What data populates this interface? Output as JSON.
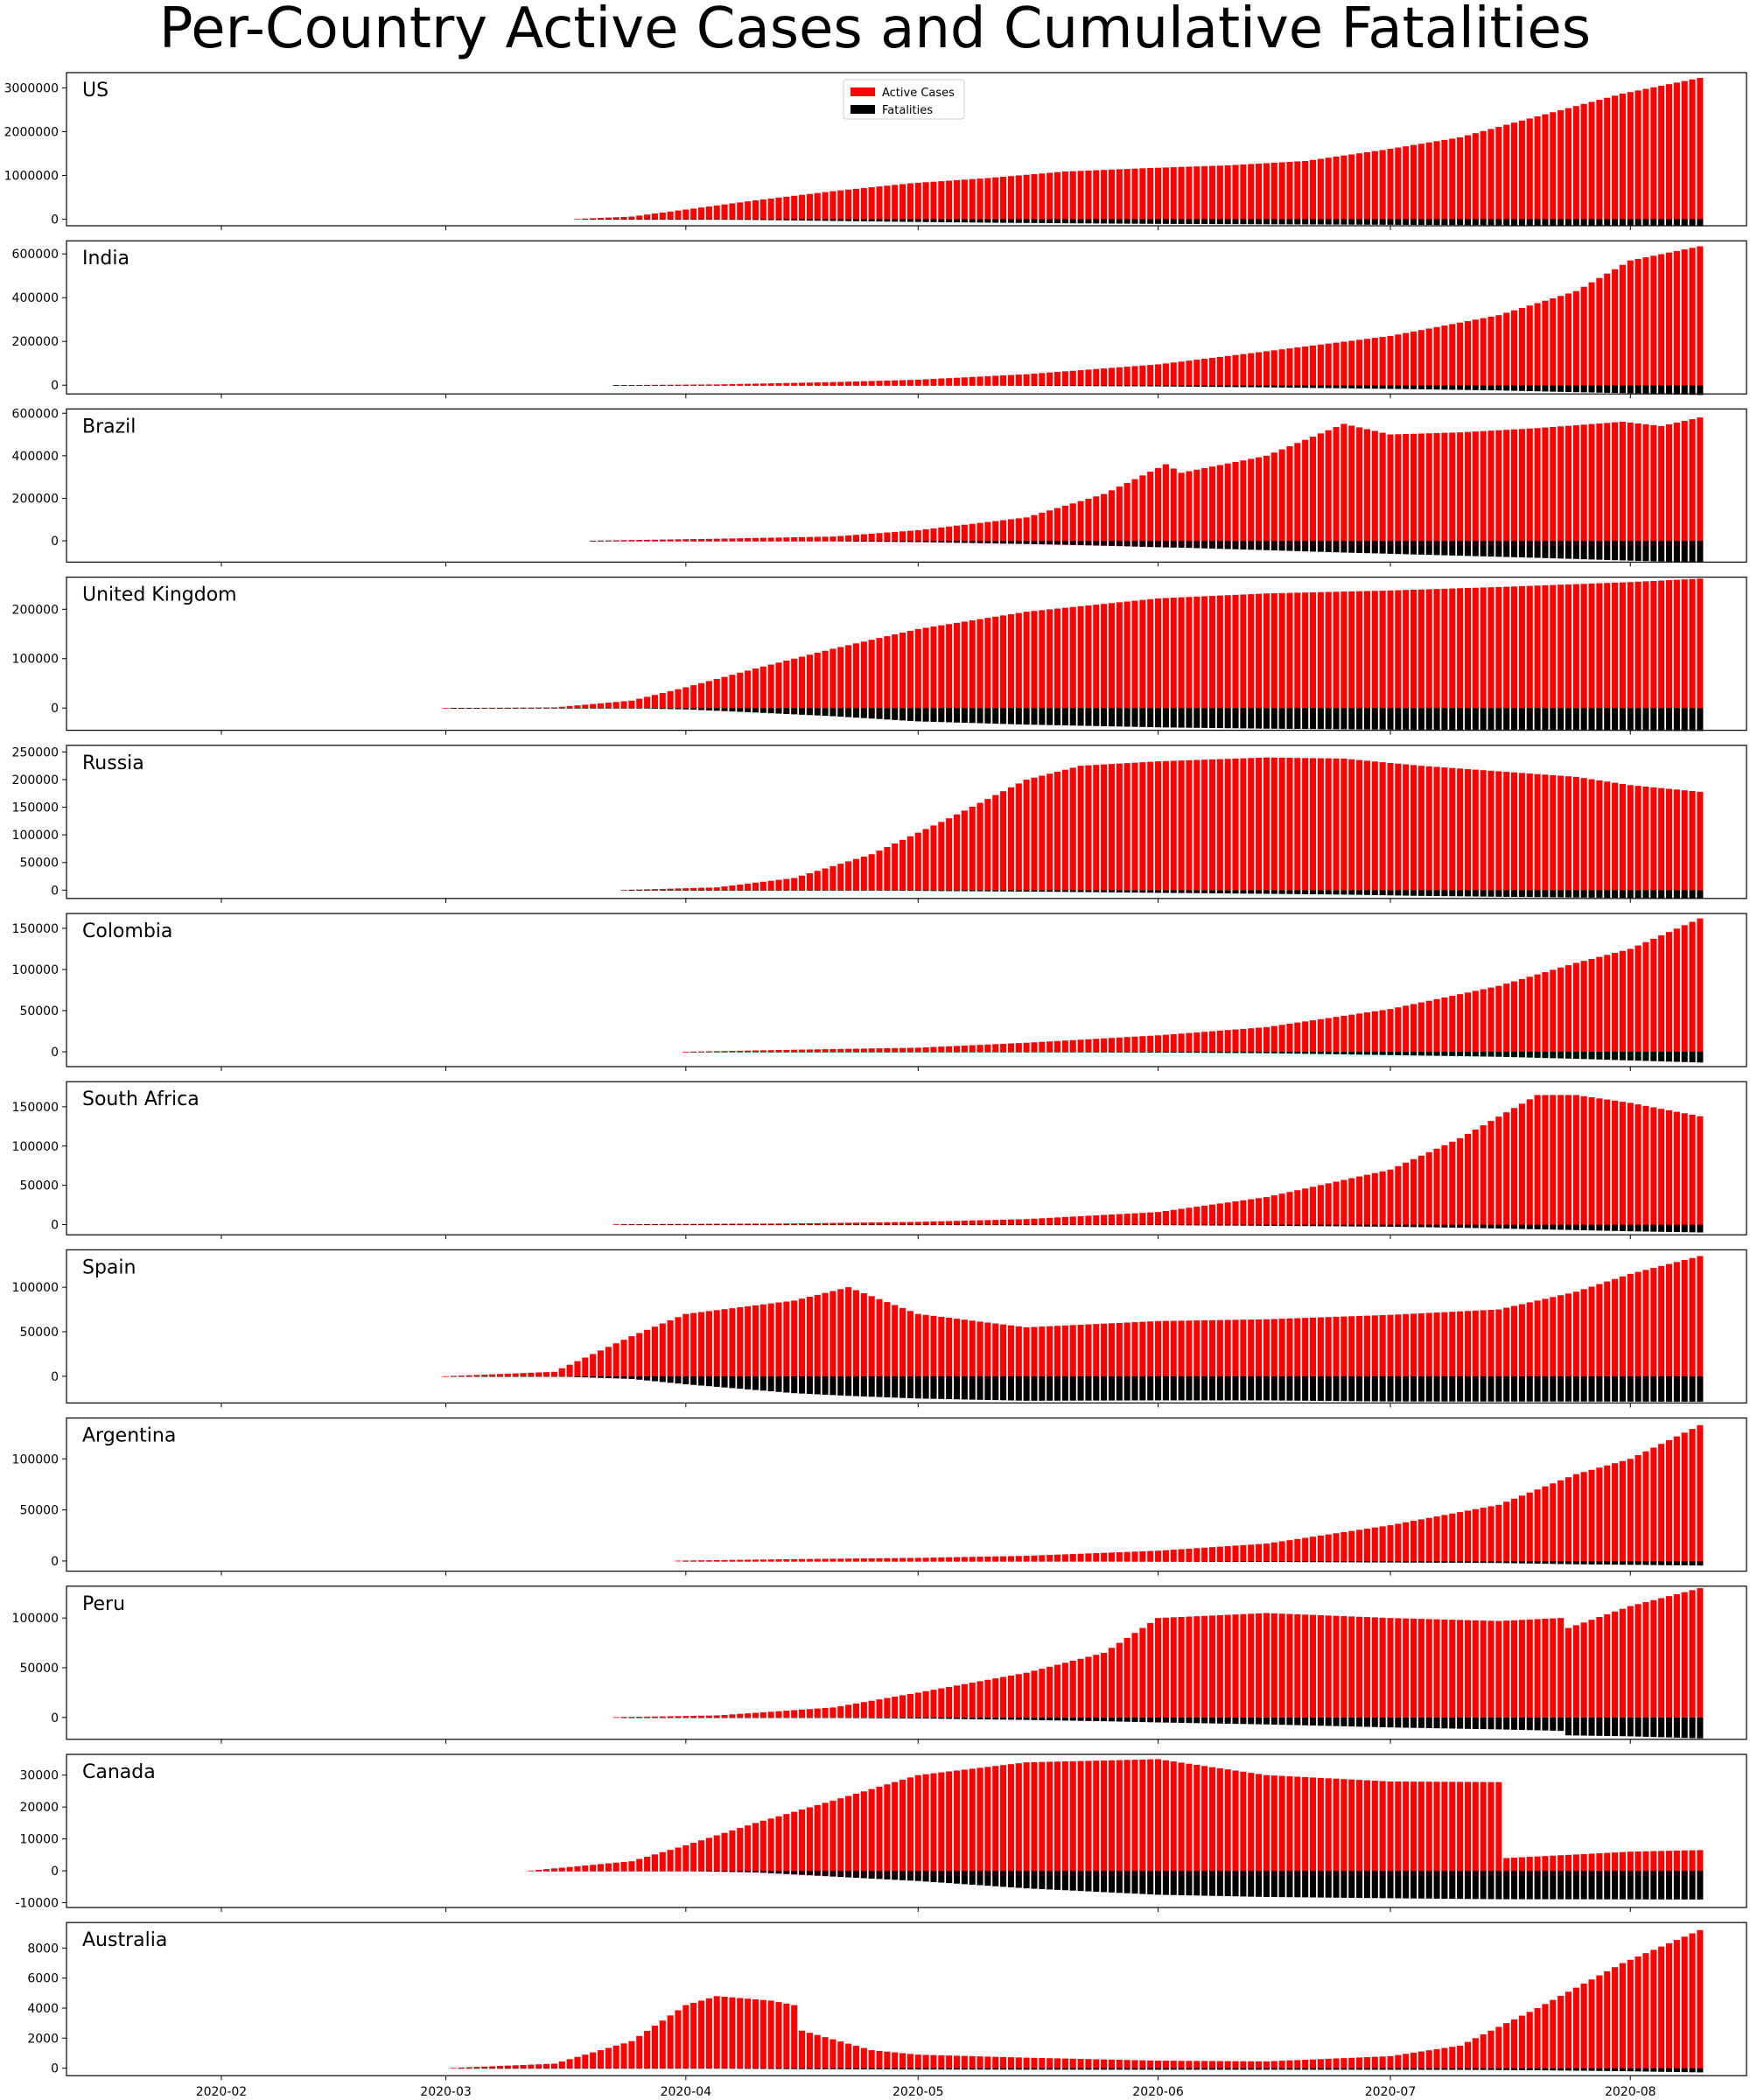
{
  "chart_data": {
    "type": "bar",
    "title": "Per-Country Active Cases and Cumulative Fatalities",
    "legend": {
      "placement": "top-center of first panel",
      "entries": [
        "Active Cases",
        "Fatalities"
      ]
    },
    "colors": {
      "active": "#ff0000",
      "fatalities": "#000000"
    },
    "x_range": [
      "2020-01-12",
      "2020-08-16"
    ],
    "x_ticks": [
      "2020-02",
      "2020-03",
      "2020-04",
      "2020-05",
      "2020-06",
      "2020-07",
      "2020-08"
    ],
    "grid": false,
    "note_values": "daily bars; values listed as [date, active, fatalities] keyframes sampled every ~5 days",
    "panels": [
      {
        "name": "US",
        "ylim": [
          -150000,
          3350000
        ],
        "yticks": [
          0,
          1000000,
          2000000,
          3000000
        ],
        "start": "2020-03-18",
        "end": "2020-08-10",
        "keyframes": [
          [
            "2020-03-18",
            5000,
            0
          ],
          [
            "2020-03-25",
            60000,
            1000
          ],
          [
            "2020-04-01",
            220000,
            5000
          ],
          [
            "2020-04-10",
            430000,
            17000
          ],
          [
            "2020-04-20",
            640000,
            40000
          ],
          [
            "2020-04-30",
            820000,
            62000
          ],
          [
            "2020-05-10",
            940000,
            79000
          ],
          [
            "2020-05-20",
            1090000,
            93000
          ],
          [
            "2020-05-31",
            1170000,
            105000
          ],
          [
            "2020-06-10",
            1230000,
            113000
          ],
          [
            "2020-06-20",
            1330000,
            120000
          ],
          [
            "2020-06-30",
            1580000,
            127000
          ],
          [
            "2020-07-10",
            1870000,
            134000
          ],
          [
            "2020-07-20",
            2350000,
            141000
          ],
          [
            "2020-07-31",
            2870000,
            153000
          ],
          [
            "2020-08-10",
            3230000,
            163000
          ]
        ]
      },
      {
        "name": "India",
        "ylim": [
          -40000,
          660000
        ],
        "yticks": [
          0,
          200000,
          400000,
          600000
        ],
        "start": "2020-03-23",
        "end": "2020-08-10",
        "keyframes": [
          [
            "2020-03-23",
            400,
            10
          ],
          [
            "2020-04-05",
            3500,
            100
          ],
          [
            "2020-04-20",
            14000,
            560
          ],
          [
            "2020-05-01",
            25000,
            1200
          ],
          [
            "2020-05-15",
            50000,
            2800
          ],
          [
            "2020-06-01",
            95000,
            5600
          ],
          [
            "2020-06-15",
            155000,
            9900
          ],
          [
            "2020-07-01",
            225000,
            17000
          ],
          [
            "2020-07-15",
            320000,
            24000
          ],
          [
            "2020-07-25",
            430000,
            32000
          ],
          [
            "2020-08-01",
            570000,
            37000
          ],
          [
            "2020-08-10",
            635000,
            45000
          ]
        ]
      },
      {
        "name": "Brazil",
        "ylim": [
          -100000,
          620000
        ],
        "yticks": [
          0,
          200000,
          400000,
          600000
        ],
        "start": "2020-03-20",
        "end": "2020-08-10",
        "keyframes": [
          [
            "2020-03-20",
            900,
            10
          ],
          [
            "2020-04-05",
            10000,
            500
          ],
          [
            "2020-04-20",
            20000,
            2500
          ],
          [
            "2020-05-01",
            50000,
            6000
          ],
          [
            "2020-05-15",
            110000,
            15000
          ],
          [
            "2020-05-25",
            220000,
            23000
          ],
          [
            "2020-06-02",
            360000,
            31000
          ],
          [
            "2020-06-04",
            320000,
            32000
          ],
          [
            "2020-06-15",
            400000,
            44000
          ],
          [
            "2020-06-25",
            550000,
            55000
          ],
          [
            "2020-07-01",
            500000,
            61000
          ],
          [
            "2020-07-10",
            510000,
            70000
          ],
          [
            "2020-07-20",
            530000,
            80000
          ],
          [
            "2020-07-31",
            560000,
            92000
          ],
          [
            "2020-08-05",
            540000,
            97000
          ],
          [
            "2020-08-10",
            580000,
            101000
          ]
        ]
      },
      {
        "name": "United Kingdom",
        "ylim": [
          -45000,
          265000
        ],
        "yticks": [
          0,
          100000,
          200000
        ],
        "start": "2020-03-01",
        "end": "2020-08-10",
        "keyframes": [
          [
            "2020-03-01",
            30,
            0
          ],
          [
            "2020-03-15",
            1300,
            30
          ],
          [
            "2020-03-25",
            15000,
            600
          ],
          [
            "2020-04-01",
            42000,
            2700
          ],
          [
            "2020-04-10",
            80000,
            9000
          ],
          [
            "2020-04-20",
            120000,
            16500
          ],
          [
            "2020-05-01",
            160000,
            27000
          ],
          [
            "2020-05-15",
            195000,
            33500
          ],
          [
            "2020-06-01",
            222000,
            39000
          ],
          [
            "2020-06-15",
            232000,
            41700
          ],
          [
            "2020-07-01",
            238000,
            43700
          ],
          [
            "2020-07-15",
            245000,
            45000
          ],
          [
            "2020-08-01",
            255000,
            46000
          ],
          [
            "2020-08-10",
            262000,
            46500
          ]
        ]
      },
      {
        "name": "Russia",
        "ylim": [
          -15000,
          262000
        ],
        "yticks": [
          0,
          50000,
          100000,
          150000,
          200000,
          250000
        ],
        "start": "2020-03-24",
        "end": "2020-08-10",
        "keyframes": [
          [
            "2020-03-24",
            400,
            0
          ],
          [
            "2020-04-05",
            5000,
            40
          ],
          [
            "2020-04-15",
            22000,
            200
          ],
          [
            "2020-04-25",
            65000,
            700
          ],
          [
            "2020-05-05",
            130000,
            1700
          ],
          [
            "2020-05-15",
            200000,
            2600
          ],
          [
            "2020-05-22",
            225000,
            3400
          ],
          [
            "2020-06-01",
            233000,
            4800
          ],
          [
            "2020-06-15",
            240000,
            6600
          ],
          [
            "2020-06-25",
            238000,
            8000
          ],
          [
            "2020-07-05",
            225000,
            10300
          ],
          [
            "2020-07-15",
            215000,
            11900
          ],
          [
            "2020-07-25",
            205000,
            13300
          ],
          [
            "2020-08-01",
            190000,
            14000
          ],
          [
            "2020-08-10",
            178000,
            15000
          ]
        ]
      },
      {
        "name": "Colombia",
        "ylim": [
          -18000,
          168000
        ],
        "yticks": [
          0,
          50000,
          100000,
          150000
        ],
        "start": "2020-04-01",
        "end": "2020-08-10",
        "keyframes": [
          [
            "2020-04-01",
            100,
            0
          ],
          [
            "2020-04-15",
            2500,
            100
          ],
          [
            "2020-05-01",
            5000,
            300
          ],
          [
            "2020-05-15",
            11000,
            500
          ],
          [
            "2020-06-01",
            20000,
            900
          ],
          [
            "2020-06-15",
            30000,
            1700
          ],
          [
            "2020-07-01",
            52000,
            4000
          ],
          [
            "2020-07-15",
            80000,
            6000
          ],
          [
            "2020-07-25",
            108000,
            8500
          ],
          [
            "2020-08-01",
            125000,
            10500
          ],
          [
            "2020-08-10",
            162000,
            13000
          ]
        ]
      },
      {
        "name": "South Africa",
        "ylim": [
          -13000,
          182000
        ],
        "yticks": [
          0,
          50000,
          100000,
          150000
        ],
        "start": "2020-03-23",
        "end": "2020-08-10",
        "keyframes": [
          [
            "2020-03-23",
            400,
            0
          ],
          [
            "2020-04-15",
            1500,
            30
          ],
          [
            "2020-05-01",
            3500,
            100
          ],
          [
            "2020-05-15",
            7000,
            250
          ],
          [
            "2020-06-01",
            16000,
            700
          ],
          [
            "2020-06-15",
            35000,
            1500
          ],
          [
            "2020-07-01",
            70000,
            2700
          ],
          [
            "2020-07-10",
            110000,
            4000
          ],
          [
            "2020-07-20",
            165000,
            6000
          ],
          [
            "2020-07-25",
            165000,
            7000
          ],
          [
            "2020-08-01",
            155000,
            8500
          ],
          [
            "2020-08-10",
            138000,
            10000
          ]
        ]
      },
      {
        "name": "Spain",
        "ylim": [
          -30000,
          142000
        ],
        "yticks": [
          0,
          50000,
          100000
        ],
        "start": "2020-03-01",
        "end": "2020-08-10",
        "keyframes": [
          [
            "2020-03-01",
            50,
            0
          ],
          [
            "2020-03-15",
            5000,
            100
          ],
          [
            "2020-03-25",
            45000,
            3000
          ],
          [
            "2020-04-01",
            70000,
            9000
          ],
          [
            "2020-04-15",
            85000,
            19000
          ],
          [
            "2020-04-22",
            100000,
            22000
          ],
          [
            "2020-05-01",
            70000,
            25000
          ],
          [
            "2020-05-15",
            55000,
            27500
          ],
          [
            "2020-06-01",
            62000,
            27100
          ],
          [
            "2020-06-15",
            64000,
            27100
          ],
          [
            "2020-07-01",
            69000,
            28300
          ],
          [
            "2020-07-15",
            75000,
            28400
          ],
          [
            "2020-07-25",
            95000,
            28400
          ],
          [
            "2020-08-01",
            115000,
            28500
          ],
          [
            "2020-08-10",
            135000,
            28600
          ]
        ]
      },
      {
        "name": "Argentina",
        "ylim": [
          -10000,
          140000
        ],
        "yticks": [
          0,
          50000,
          100000
        ],
        "start": "2020-03-31",
        "end": "2020-08-10",
        "keyframes": [
          [
            "2020-03-31",
            300,
            0
          ],
          [
            "2020-04-15",
            1800,
            100
          ],
          [
            "2020-05-01",
            3000,
            200
          ],
          [
            "2020-05-15",
            5000,
            350
          ],
          [
            "2020-06-01",
            10000,
            600
          ],
          [
            "2020-06-15",
            17000,
            900
          ],
          [
            "2020-07-01",
            35000,
            1500
          ],
          [
            "2020-07-15",
            55000,
            2000
          ],
          [
            "2020-07-25",
            85000,
            3300
          ],
          [
            "2020-08-01",
            100000,
            3800
          ],
          [
            "2020-08-10",
            133000,
            4500
          ]
        ]
      },
      {
        "name": "Peru",
        "ylim": [
          -22000,
          132000
        ],
        "yticks": [
          0,
          50000,
          100000
        ],
        "start": "2020-03-23",
        "end": "2020-08-10",
        "keyframes": [
          [
            "2020-03-23",
            300,
            0
          ],
          [
            "2020-04-05",
            2000,
            100
          ],
          [
            "2020-04-20",
            10000,
            500
          ],
          [
            "2020-05-01",
            25000,
            1000
          ],
          [
            "2020-05-15",
            45000,
            2500
          ],
          [
            "2020-05-25",
            65000,
            3800
          ],
          [
            "2020-06-01",
            100000,
            5000
          ],
          [
            "2020-06-15",
            105000,
            7000
          ],
          [
            "2020-07-01",
            100000,
            10000
          ],
          [
            "2020-07-15",
            97000,
            12000
          ],
          [
            "2020-07-23",
            100000,
            13500
          ],
          [
            "2020-07-24",
            90000,
            18000
          ],
          [
            "2020-08-01",
            112000,
            19000
          ],
          [
            "2020-08-10",
            130000,
            21000
          ]
        ]
      },
      {
        "name": "Canada",
        "ylim": [
          -11500,
          36500
        ],
        "yticks": [
          -10000,
          0,
          10000,
          20000,
          30000
        ],
        "start": "2020-03-12",
        "end": "2020-08-10",
        "keyframes": [
          [
            "2020-03-12",
            80,
            0
          ],
          [
            "2020-03-25",
            3000,
            30
          ],
          [
            "2020-04-01",
            8000,
            100
          ],
          [
            "2020-04-10",
            15000,
            500
          ],
          [
            "2020-04-20",
            22000,
            1800
          ],
          [
            "2020-05-01",
            30000,
            3200
          ],
          [
            "2020-05-15",
            34000,
            5500
          ],
          [
            "2020-06-01",
            35000,
            7500
          ],
          [
            "2020-06-15",
            30000,
            8200
          ],
          [
            "2020-07-01",
            28000,
            8600
          ],
          [
            "2020-07-15",
            27800,
            8900
          ],
          [
            "2020-07-16",
            4000,
            8900
          ],
          [
            "2020-08-01",
            6000,
            8950
          ],
          [
            "2020-08-10",
            6500,
            9000
          ]
        ]
      },
      {
        "name": "Australia",
        "ylim": [
          -500,
          9700
        ],
        "yticks": [
          0,
          2000,
          4000,
          6000,
          8000
        ],
        "start": "2020-03-02",
        "end": "2020-08-10",
        "keyframes": [
          [
            "2020-03-02",
            20,
            0
          ],
          [
            "2020-03-15",
            300,
            3
          ],
          [
            "2020-03-25",
            1800,
            10
          ],
          [
            "2020-04-01",
            4200,
            20
          ],
          [
            "2020-04-05",
            4800,
            30
          ],
          [
            "2020-04-12",
            4500,
            55
          ],
          [
            "2020-04-15",
            4200,
            65
          ],
          [
            "2020-04-16",
            2500,
            65
          ],
          [
            "2020-04-25",
            1200,
            80
          ],
          [
            "2020-05-01",
            900,
            90
          ],
          [
            "2020-05-15",
            700,
            98
          ],
          [
            "2020-06-01",
            500,
            103
          ],
          [
            "2020-06-15",
            450,
            104
          ],
          [
            "2020-07-01",
            800,
            106
          ],
          [
            "2020-07-10",
            1500,
            110
          ],
          [
            "2020-07-20",
            4000,
            140
          ],
          [
            "2020-07-31",
            7000,
            200
          ],
          [
            "2020-08-10",
            9200,
            280
          ]
        ]
      }
    ]
  }
}
